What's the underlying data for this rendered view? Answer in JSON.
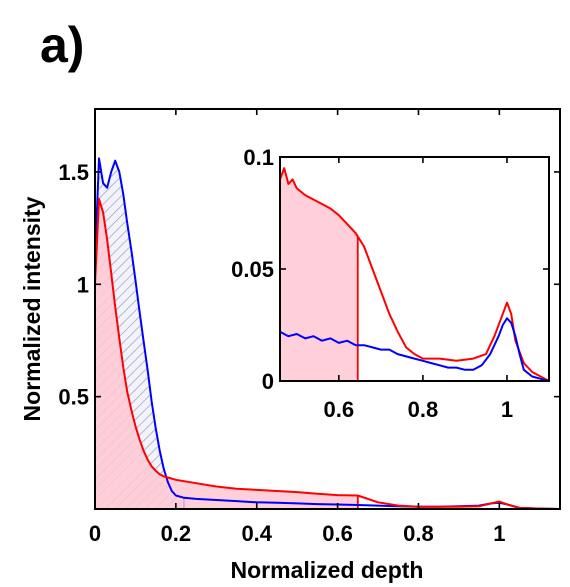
{
  "panel_label": "a)",
  "chart_data": [
    {
      "type": "line",
      "role": "main",
      "xlabel": "Normalized depth",
      "ylabel": "Normalized intensity",
      "xlim": [
        0,
        1.15
      ],
      "ylim": [
        0,
        1.78
      ],
      "xticks": [
        0,
        0.2,
        0.4,
        0.6,
        0.8,
        1
      ],
      "xtick_labels": [
        "0",
        "0.2",
        "0.4",
        "0.6",
        "0.8",
        "1"
      ],
      "yticks": [
        0.5,
        1,
        1.5
      ],
      "ytick_labels": [
        "0.5",
        "1",
        "1.5"
      ],
      "grid": false,
      "colors": {
        "blue": "#0000ff",
        "red": "#ff0000",
        "red_fill": "#ffc8d2",
        "blue_hatch": "#8b8fc4"
      },
      "series": [
        {
          "color": "blue",
          "fill": "hatch",
          "fill_until_x": 0.22,
          "x": [
            0,
            0.01,
            0.02,
            0.03,
            0.04,
            0.05,
            0.06,
            0.07,
            0.08,
            0.09,
            0.1,
            0.11,
            0.12,
            0.13,
            0.14,
            0.15,
            0.16,
            0.17,
            0.18,
            0.19,
            0.2,
            0.22,
            0.25,
            0.3,
            0.35,
            0.4,
            0.45,
            0.5,
            0.55,
            0.6,
            0.65,
            0.7,
            0.75,
            0.8,
            0.85,
            0.9,
            0.95,
            0.98,
            1.0,
            1.02,
            1.05,
            1.1,
            1.15
          ],
          "y": [
            1.1,
            1.56,
            1.45,
            1.43,
            1.5,
            1.55,
            1.5,
            1.4,
            1.27,
            1.15,
            1.02,
            0.88,
            0.75,
            0.62,
            0.48,
            0.36,
            0.26,
            0.18,
            0.12,
            0.08,
            0.06,
            0.05,
            0.045,
            0.04,
            0.035,
            0.03,
            0.028,
            0.025,
            0.022,
            0.02,
            0.018,
            0.015,
            0.012,
            0.01,
            0.01,
            0.012,
            0.015,
            0.025,
            0.028,
            0.02,
            0.005,
            0.002,
            0.0
          ]
        },
        {
          "color": "red",
          "fill": "solid",
          "fill_until_x": 0.65,
          "x": [
            0,
            0.01,
            0.02,
            0.03,
            0.04,
            0.05,
            0.06,
            0.07,
            0.08,
            0.09,
            0.1,
            0.11,
            0.12,
            0.13,
            0.14,
            0.15,
            0.16,
            0.17,
            0.18,
            0.2,
            0.25,
            0.3,
            0.35,
            0.4,
            0.45,
            0.5,
            0.55,
            0.6,
            0.65,
            0.7,
            0.75,
            0.8,
            0.85,
            0.9,
            0.95,
            0.98,
            1.0,
            1.02,
            1.05,
            1.1,
            1.15
          ],
          "y": [
            1.0,
            1.38,
            1.32,
            1.2,
            1.05,
            0.9,
            0.76,
            0.63,
            0.52,
            0.44,
            0.37,
            0.31,
            0.26,
            0.22,
            0.19,
            0.17,
            0.155,
            0.145,
            0.14,
            0.13,
            0.115,
            0.1,
            0.09,
            0.085,
            0.08,
            0.075,
            0.068,
            0.062,
            0.06,
            0.03,
            0.015,
            0.01,
            0.01,
            0.01,
            0.012,
            0.025,
            0.033,
            0.02,
            0.005,
            0.002,
            0.0
          ]
        }
      ]
    },
    {
      "type": "line",
      "role": "inset",
      "xlim": [
        0.46,
        1.1
      ],
      "ylim": [
        0,
        0.1
      ],
      "xticks": [
        0.6,
        0.8,
        1
      ],
      "xtick_labels": [
        "0.6",
        "0.8",
        "1"
      ],
      "yticks": [
        0,
        0.05,
        0.1
      ],
      "ytick_labels": [
        "0",
        "0.05",
        "0.1"
      ],
      "grid": false,
      "series": [
        {
          "color": "red",
          "fill": "solid",
          "fill_until_x": 0.645,
          "x": [
            0.46,
            0.47,
            0.48,
            0.49,
            0.5,
            0.52,
            0.54,
            0.56,
            0.58,
            0.6,
            0.62,
            0.64,
            0.66,
            0.68,
            0.7,
            0.72,
            0.74,
            0.76,
            0.78,
            0.8,
            0.84,
            0.88,
            0.92,
            0.95,
            0.97,
            0.99,
            1.0,
            1.01,
            1.02,
            1.04,
            1.06,
            1.08,
            1.1
          ],
          "y": [
            0.09,
            0.095,
            0.088,
            0.09,
            0.086,
            0.083,
            0.081,
            0.079,
            0.077,
            0.074,
            0.07,
            0.066,
            0.06,
            0.05,
            0.04,
            0.03,
            0.022,
            0.015,
            0.012,
            0.01,
            0.01,
            0.009,
            0.01,
            0.012,
            0.02,
            0.03,
            0.035,
            0.03,
            0.018,
            0.008,
            0.004,
            0.002,
            0.0
          ]
        },
        {
          "color": "blue",
          "fill": "none",
          "x": [
            0.46,
            0.48,
            0.5,
            0.52,
            0.54,
            0.56,
            0.58,
            0.6,
            0.62,
            0.64,
            0.66,
            0.68,
            0.7,
            0.72,
            0.74,
            0.76,
            0.78,
            0.8,
            0.82,
            0.84,
            0.86,
            0.88,
            0.9,
            0.92,
            0.94,
            0.96,
            0.98,
            0.99,
            1.0,
            1.01,
            1.02,
            1.03,
            1.04,
            1.06,
            1.08,
            1.1
          ],
          "y": [
            0.022,
            0.02,
            0.021,
            0.019,
            0.02,
            0.018,
            0.019,
            0.017,
            0.018,
            0.016,
            0.016,
            0.015,
            0.014,
            0.014,
            0.012,
            0.011,
            0.01,
            0.009,
            0.008,
            0.007,
            0.006,
            0.006,
            0.005,
            0.005,
            0.007,
            0.012,
            0.02,
            0.025,
            0.028,
            0.026,
            0.02,
            0.012,
            0.005,
            0.002,
            0.001,
            0.0
          ]
        }
      ]
    }
  ]
}
